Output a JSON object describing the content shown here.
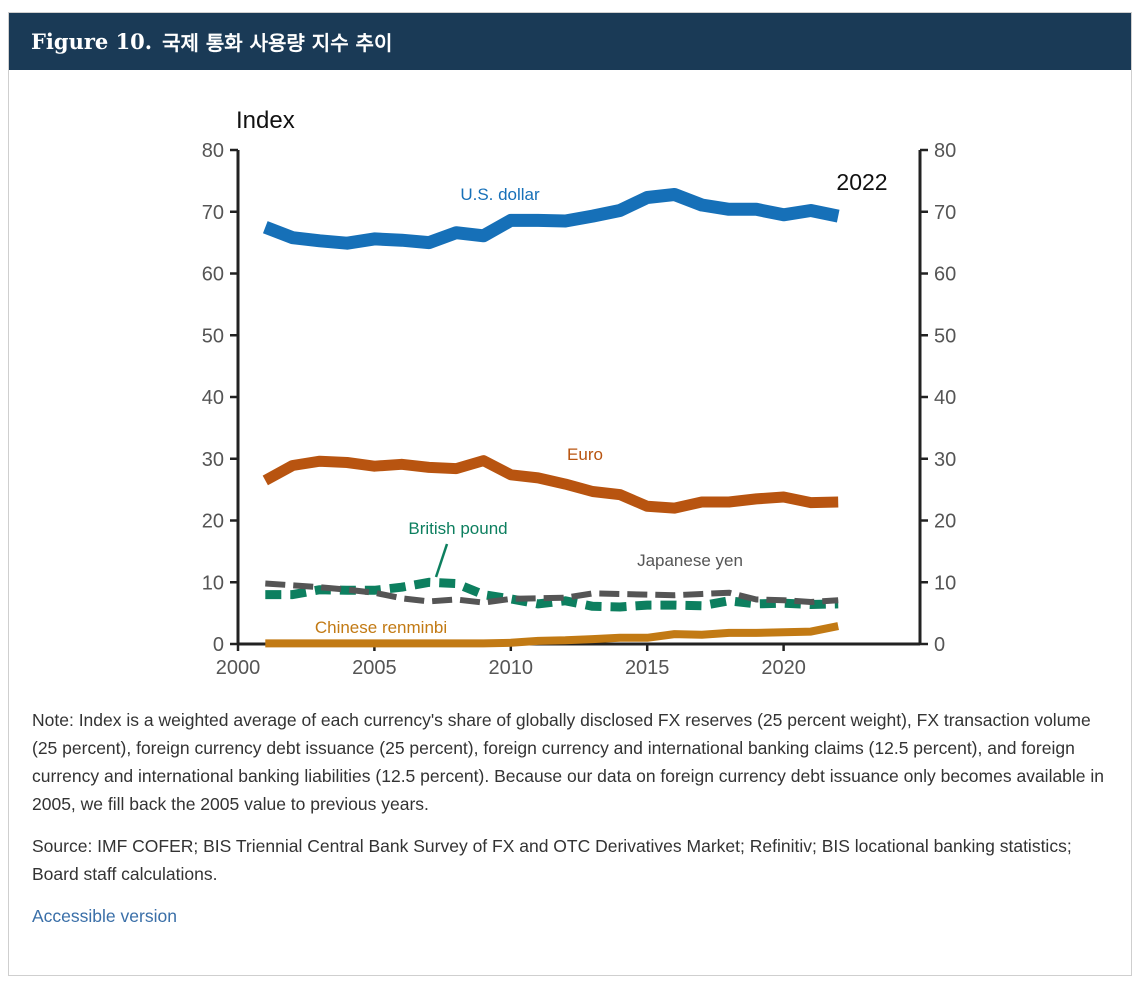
{
  "figure": {
    "label": "Figure 10.",
    "title": "국제 통화 사용량 지수 추이"
  },
  "chart_data": {
    "type": "line",
    "ylabel": "Index",
    "ylim": [
      0,
      80
    ],
    "yticks": [
      0,
      10,
      20,
      30,
      40,
      50,
      60,
      70,
      80
    ],
    "xlim": [
      2000,
      2025
    ],
    "xticks": [
      2000,
      2005,
      2010,
      2015,
      2020
    ],
    "latest_year_label": "2022",
    "x": [
      2001,
      2002,
      2003,
      2004,
      2005,
      2006,
      2007,
      2008,
      2009,
      2010,
      2011,
      2012,
      2013,
      2014,
      2015,
      2016,
      2017,
      2018,
      2019,
      2020,
      2021,
      2022
    ],
    "series": [
      {
        "name": "U.S. dollar",
        "color": "#1670b8",
        "style": "solid",
        "values": [
          67.5,
          65.8,
          65.3,
          64.9,
          65.6,
          65.4,
          65.0,
          66.6,
          66.1,
          68.6,
          68.6,
          68.5,
          69.3,
          70.2,
          72.3,
          72.8,
          71.1,
          70.4,
          70.4,
          69.5,
          70.2,
          69.3
        ]
      },
      {
        "name": "Euro",
        "color": "#b85410",
        "style": "solid",
        "values": [
          26.5,
          28.9,
          29.6,
          29.4,
          28.8,
          29.1,
          28.6,
          28.4,
          29.7,
          27.4,
          26.9,
          25.9,
          24.7,
          24.2,
          22.3,
          22.0,
          23.0,
          23.0,
          23.5,
          23.8,
          22.9,
          23.0
        ]
      },
      {
        "name": "British pound",
        "color": "#0d7f5f",
        "style": "dashed",
        "values": [
          8.0,
          8.0,
          8.8,
          8.7,
          8.7,
          9.2,
          10.0,
          9.8,
          8.0,
          7.3,
          6.5,
          7.0,
          6.1,
          6.0,
          6.3,
          6.3,
          6.2,
          7.0,
          6.5,
          6.6,
          6.4,
          6.5
        ]
      },
      {
        "name": "Japanese yen",
        "color": "#555555",
        "style": "dashed",
        "values": [
          9.8,
          9.5,
          9.2,
          8.8,
          8.3,
          7.4,
          6.9,
          7.2,
          6.7,
          7.3,
          7.4,
          7.5,
          8.2,
          8.1,
          8.0,
          7.9,
          8.1,
          8.3,
          7.2,
          7.1,
          6.8,
          7.1
        ]
      },
      {
        "name": "Chinese renminbi",
        "color": "#c27a14",
        "style": "solid",
        "values": [
          0.1,
          0.1,
          0.1,
          0.1,
          0.1,
          0.1,
          0.1,
          0.1,
          0.1,
          0.2,
          0.5,
          0.6,
          0.8,
          1.0,
          1.0,
          1.6,
          1.5,
          1.8,
          1.8,
          1.9,
          2.0,
          2.9
        ]
      }
    ]
  },
  "note": "Note: Index is a weighted average of each currency's share of globally disclosed FX reserves (25 percent weight), FX transaction volume (25 percent), foreign currency debt issuance (25 percent), foreign currency and international banking claims (12.5 percent), and foreign currency and international banking liabilities (12.5 percent). Because our data on foreign currency debt issuance only becomes available in 2005, we fill back the 2005 value to previous years.",
  "source": "Source: IMF COFER; BIS Triennial Central Bank Survey of FX and OTC Derivatives Market; Refinitiv; BIS locational banking statistics; Board staff calculations.",
  "accessible_link": "Accessible version"
}
